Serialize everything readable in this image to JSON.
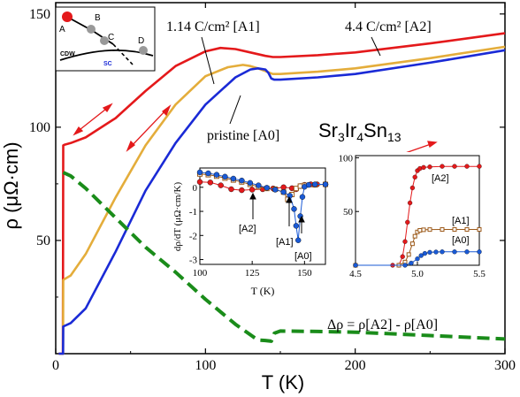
{
  "chart_data": [
    {
      "type": "line",
      "xlabel": "T (K)",
      "ylabel": "ρ (μΩ·cm)",
      "xlim": [
        0,
        300
      ],
      "ylim": [
        0,
        155
      ],
      "xticks": [
        "0",
        "100",
        "200",
        "300"
      ],
      "yticks": [
        "50",
        "100",
        "150"
      ],
      "title": "Sr3Ir4Sn13",
      "title_parts": {
        "a": "Sr",
        "a_sub": "3",
        "b": "Ir",
        "b_sub": "4",
        "c": "Sn",
        "c_sub": "13"
      },
      "series": [
        {
          "name": "4.4 C/cm² [A2]",
          "color": "#e4191b",
          "x": [
            2,
            4.8,
            5,
            6,
            10,
            20,
            40,
            60,
            80,
            100,
            110,
            120,
            130,
            140,
            145,
            150,
            175,
            200,
            250,
            300
          ],
          "y": [
            0,
            0,
            92,
            92.3,
            93,
            95.5,
            104,
            116,
            127,
            133.5,
            135,
            134.5,
            133,
            131.5,
            131,
            131,
            131.8,
            133,
            137,
            141.5
          ]
        },
        {
          "name": "1.14 C/cm² [A1]",
          "color": "#e4ad3b",
          "x": [
            2,
            4.9,
            5,
            6,
            10,
            20,
            40,
            60,
            80,
            100,
            115,
            125,
            130,
            135,
            140,
            143,
            145,
            150,
            175,
            200,
            250,
            300
          ],
          "y": [
            0,
            0,
            32.5,
            33,
            34.5,
            44,
            69,
            92,
            110,
            122.5,
            126.5,
            127.5,
            127,
            126,
            124.8,
            124,
            123.5,
            123.5,
            124.5,
            126,
            130.5,
            135.5
          ]
        },
        {
          "name": "pristine [A0]",
          "color": "#1a2ad6",
          "x": [
            2,
            4.9,
            5,
            6,
            10,
            20,
            40,
            60,
            80,
            100,
            120,
            130,
            135,
            140,
            142,
            144,
            146,
            150,
            175,
            200,
            250,
            300
          ],
          "y": [
            0,
            0,
            12,
            12.3,
            13.5,
            20,
            45,
            72,
            93,
            110,
            122,
            125.5,
            126,
            125.5,
            124,
            121.5,
            121,
            121,
            122,
            123.5,
            128.5,
            134
          ]
        },
        {
          "name": "Δρ = ρ[A2] - ρ[A0]",
          "color": "#1a8c1a",
          "dashed": true,
          "x": [
            5,
            10,
            20,
            40,
            60,
            80,
            100,
            120,
            135,
            140,
            144,
            146,
            150,
            175,
            200,
            250,
            300
          ],
          "y": [
            80,
            78.5,
            73,
            60,
            47,
            36,
            24,
            13,
            6,
            5.8,
            5.5,
            9,
            10,
            9.8,
            9.5,
            8,
            6.5
          ]
        }
      ],
      "annotations": {
        "label_a2": "4.4 C/cm² [A2]",
        "label_a1": "1.14 C/cm² [A1]",
        "label_a0": "pristine [A0]",
        "label_delta": "Δρ = ρ[A2] - ρ[A0]"
      }
    },
    {
      "type": "scatter",
      "xlabel": "T (K)",
      "ylabel": "dρ/dT (μΩ·cm/K)",
      "xlim": [
        100,
        160
      ],
      "ylim": [
        -3.2,
        0.8
      ],
      "xticks": [
        "100",
        "125",
        "150"
      ],
      "yticks": [
        "0",
        "-1",
        "-2",
        "-3"
      ],
      "series": [
        {
          "name": "[A2]",
          "color": "#e4191b",
          "marker": "circle",
          "x": [
            100,
            105,
            110,
            115,
            120,
            125,
            130,
            135,
            140,
            144,
            146,
            148,
            150,
            153,
            156,
            160
          ],
          "y": [
            0.22,
            0.2,
            0.08,
            -0.08,
            -0.12,
            -0.1,
            -0.08,
            -0.05,
            0.0,
            -0.04,
            -0.08,
            0.05,
            0.1,
            0.12,
            0.12,
            0.12
          ]
        },
        {
          "name": "[A1]",
          "color": "#9c5a1a",
          "marker": "square",
          "x": [
            100,
            104,
            108,
            112,
            116,
            120,
            124,
            128,
            132,
            136,
            140,
            142,
            144,
            146,
            148,
            150,
            155,
            160
          ],
          "y": [
            0.55,
            0.52,
            0.46,
            0.38,
            0.3,
            0.22,
            0.12,
            0.02,
            -0.05,
            -0.08,
            -0.2,
            -0.5,
            -0.3,
            -0.05,
            0.05,
            0.08,
            0.1,
            0.12
          ]
        },
        {
          "name": "[A0]",
          "color": "#1a5ad6",
          "marker": "circle",
          "x": [
            100,
            104,
            108,
            112,
            116,
            120,
            124,
            128,
            132,
            136,
            140,
            143,
            145,
            146,
            147,
            148,
            149,
            150,
            152,
            155,
            160
          ],
          "y": [
            0.62,
            0.58,
            0.52,
            0.44,
            0.36,
            0.28,
            0.18,
            0.08,
            -0.02,
            -0.1,
            -0.2,
            -0.35,
            -0.9,
            -1.6,
            -2.2,
            -1.2,
            -0.4,
            0.02,
            0.1,
            0.12,
            0.12
          ]
        }
      ],
      "annotations": {
        "a2": "[A2]",
        "a1": "[A1]",
        "a0": "[A0]"
      }
    },
    {
      "type": "line",
      "xlabel": "",
      "xlim": [
        4.5,
        5.5
      ],
      "ylim": [
        0,
        102
      ],
      "xticks": [
        "4.5",
        "5.0",
        "5.5"
      ],
      "yticks": [
        "100",
        "50"
      ],
      "series": [
        {
          "name": "[A2]",
          "color": "#e4191b",
          "marker": "circle",
          "x": [
            4.5,
            4.8,
            4.85,
            4.88,
            4.9,
            4.92,
            4.94,
            4.96,
            4.98,
            5.0,
            5.02,
            5.05,
            5.1,
            5.2,
            5.3,
            5.4,
            5.5
          ],
          "y": [
            0,
            0,
            0,
            8,
            22,
            40,
            58,
            72,
            82,
            88,
            90,
            91,
            91.5,
            92,
            92,
            92,
            92
          ]
        },
        {
          "name": "[A1]",
          "color": "#9c5a1a",
          "marker": "square",
          "x": [
            4.5,
            4.85,
            4.9,
            4.93,
            4.96,
            4.98,
            5.0,
            5.02,
            5.05,
            5.1,
            5.2,
            5.3,
            5.4,
            5.5
          ],
          "y": [
            0,
            0,
            3,
            10,
            20,
            27,
            31,
            32.5,
            33,
            33.2,
            33.3,
            33.3,
            33.3,
            33.3
          ]
        },
        {
          "name": "[A0]",
          "color": "#1a5ad6",
          "marker": "circle",
          "x": [
            4.5,
            4.9,
            4.95,
            5.0,
            5.03,
            5.06,
            5.1,
            5.15,
            5.2,
            5.3,
            5.4,
            5.5
          ],
          "y": [
            0,
            0,
            2,
            6,
            9,
            11,
            12,
            12.3,
            12.5,
            12.5,
            12.5,
            12.5
          ]
        }
      ],
      "annotations": {
        "a2": "[A2]",
        "a1": "[A1]",
        "a0": "[A0]"
      }
    }
  ],
  "phase_diagram": {
    "points": [
      "A",
      "B",
      "C",
      "D"
    ],
    "labels": {
      "cdw": "CDW",
      "sc": "SC"
    },
    "colors": {
      "cdw_line": "#000000",
      "sc_line": "#000000",
      "point": "#999999",
      "point_a": "#e4191b",
      "cdw_text": "#000000",
      "sc_text": "#1a2ad6"
    }
  }
}
